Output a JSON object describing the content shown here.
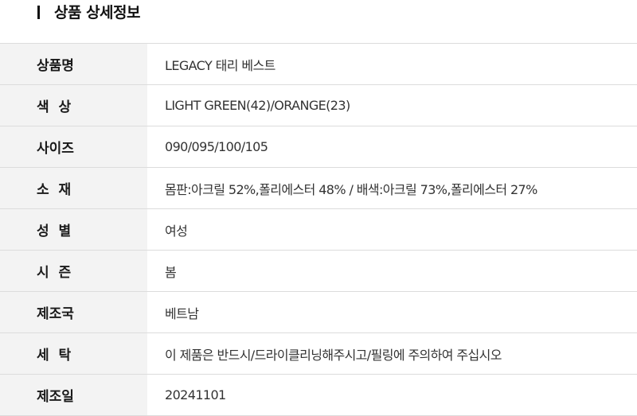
{
  "section": {
    "title": "상품 상세정보"
  },
  "spec": {
    "rows": [
      {
        "label": "상품명",
        "value": "LEGACY 태리 베스트"
      },
      {
        "label": "색  상",
        "value": "LIGHT GREEN(42)/ORANGE(23)"
      },
      {
        "label": "사이즈",
        "value": "090/095/100/105"
      },
      {
        "label": "소  재",
        "value": "몸판:아크릴 52%,폴리에스터 48% / 배색:아크릴 73%,폴리에스터 27%"
      },
      {
        "label": "성  별",
        "value": "여성"
      },
      {
        "label": "시  즌",
        "value": "봄"
      },
      {
        "label": "제조국",
        "value": "베트남"
      },
      {
        "label": "세  탁",
        "value": "이 제품은 반드시/드라이클리닝해주시고/필링에 주의하여 주십시오"
      },
      {
        "label": "제조일",
        "value": "20241101"
      }
    ]
  }
}
